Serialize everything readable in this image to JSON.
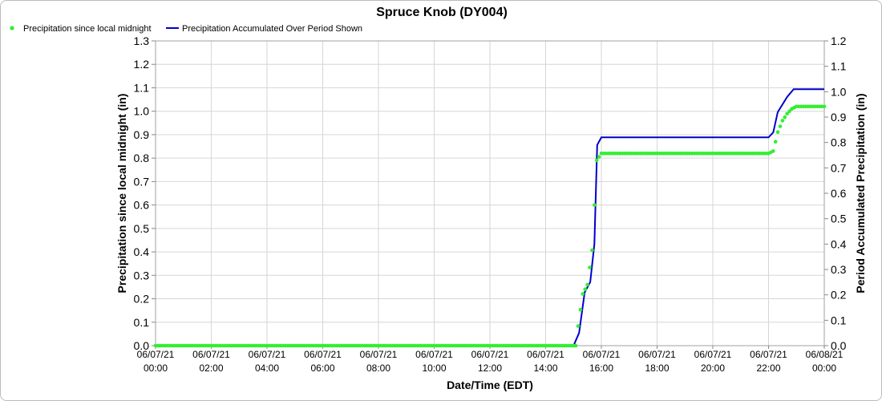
{
  "chart_data": {
    "type": "line",
    "title": "Spruce Knob (DY004)",
    "xlabel": "Date/Time (EDT)",
    "ylabel_left": "Precipitation since local midnight (in)",
    "ylabel_right": "Period Accumulated Precipitation (in)",
    "ylim_left": [
      0,
      1.3
    ],
    "ylim_right": [
      0,
      1.2
    ],
    "yticks_left": [
      "0.0",
      "0.1",
      "0.2",
      "0.3",
      "0.4",
      "0.5",
      "0.6",
      "0.7",
      "0.8",
      "0.9",
      "1.0",
      "1.1",
      "1.2",
      "1.3"
    ],
    "yticks_right": [
      "0.0",
      "0.1",
      "0.2",
      "0.3",
      "0.4",
      "0.5",
      "0.6",
      "0.7",
      "0.8",
      "0.9",
      "1.0",
      "1.1",
      "1.2"
    ],
    "xlim_hours": [
      0,
      24
    ],
    "xticks": [
      {
        "date": "06/07/21",
        "time": "00:00"
      },
      {
        "date": "06/07/21",
        "time": "02:00"
      },
      {
        "date": "06/07/21",
        "time": "04:00"
      },
      {
        "date": "06/07/21",
        "time": "06:00"
      },
      {
        "date": "06/07/21",
        "time": "08:00"
      },
      {
        "date": "06/07/21",
        "time": "10:00"
      },
      {
        "date": "06/07/21",
        "time": "12:00"
      },
      {
        "date": "06/07/21",
        "time": "14:00"
      },
      {
        "date": "06/07/21",
        "time": "16:00"
      },
      {
        "date": "06/07/21",
        "time": "18:00"
      },
      {
        "date": "06/07/21",
        "time": "20:00"
      },
      {
        "date": "06/07/21",
        "time": "22:00"
      },
      {
        "date": "06/08/21",
        "time": "00:00"
      }
    ],
    "grid": true,
    "legend_position": "top-left",
    "series": [
      {
        "name": "Precipitation since local midnight",
        "axis": "left",
        "style": "dots",
        "color": "#33ee33",
        "points": [
          [
            15.15,
            0.07
          ],
          [
            15.33,
            0.22
          ],
          [
            15.5,
            0.26
          ],
          [
            15.67,
            0.41
          ],
          [
            15.83,
            0.79
          ],
          [
            16.0,
            0.82
          ],
          [
            16.0,
            0.82
          ],
          [
            22.0,
            0.82
          ],
          [
            22.17,
            0.83
          ],
          [
            22.33,
            0.91
          ],
          [
            22.5,
            0.96
          ],
          [
            22.67,
            0.99
          ],
          [
            22.83,
            1.01
          ],
          [
            23.0,
            1.02
          ],
          [
            24.0,
            1.02
          ]
        ]
      },
      {
        "name": "Precipitation Accumulated Over Period Shown",
        "axis": "right",
        "style": "line",
        "color": "#0000cc",
        "points": [
          [
            0,
            0
          ],
          [
            15.0,
            0
          ],
          [
            15.2,
            0.05
          ],
          [
            15.4,
            0.21
          ],
          [
            15.6,
            0.25
          ],
          [
            15.75,
            0.4
          ],
          [
            15.85,
            0.79
          ],
          [
            16.0,
            0.82
          ],
          [
            22.0,
            0.82
          ],
          [
            22.17,
            0.84
          ],
          [
            22.33,
            0.92
          ],
          [
            22.67,
            0.98
          ],
          [
            22.9,
            1.01
          ],
          [
            23.0,
            1.01
          ],
          [
            24.0,
            1.01
          ]
        ]
      }
    ]
  }
}
